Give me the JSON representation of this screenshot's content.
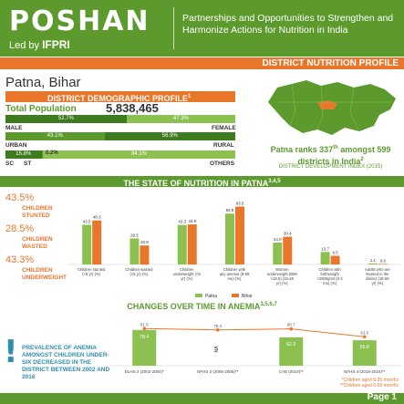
{
  "header": {
    "logo": "POSHAN",
    "led_by": "Led by",
    "ifpri": "IFPRI",
    "tagline": "Partnerships and Opportunities to Strengthen and Harmonize Actions for Nutrition in India",
    "band_title": "DISTRICT NUTRITION PROFILE"
  },
  "district": {
    "name": "Patna, Bihar",
    "demo_title": "DISTRICT DEMOGRAPHIC PROFILE",
    "demo_sup": "1",
    "total_label": "Total Population",
    "total_value": "5,838,465",
    "male_pct": 52.7,
    "male_label_pct": "52.7%",
    "female_pct": 47.3,
    "female_label_pct": "47.3%",
    "male": "MALE",
    "female": "FEMALE",
    "urban_pct": 43.1,
    "urban_label_pct": "43.1%",
    "rural_pct": 56.9,
    "rural_label_pct": "56.9%",
    "urban": "URBAN",
    "rural": "RURAL",
    "sc_pct": 15.8,
    "sc_label_pct": "15.8%",
    "st_pct": 0.2,
    "st_label_pct": "0.2%",
    "others_pct": 84.1,
    "others_label_pct": "84.1%",
    "sc": "SC",
    "st": "ST",
    "others": "OTHERS"
  },
  "rank": {
    "text1": "Patna ranks 337",
    "sup1": "th",
    "text2": " amongst 599 districts in India",
    "sup2": "2",
    "ddi": "DISTRICT DEVELOPMENT INDEX (2015)"
  },
  "state_title": "THE STATE OF NUTRITION IN PATNA",
  "state_sup": "3,4,5",
  "stats": [
    {
      "pct": "43.5%",
      "label": "CHILDREN STUNTED"
    },
    {
      "pct": "28.5%",
      "label": "CHILDREN WASTED"
    },
    {
      "pct": "43.3%",
      "label": "CHILDREN UNDERWEIGHT"
    }
  ],
  "colors": {
    "green": "#5c9a2e",
    "orange": "#e8762b",
    "blue": "#2d8fb0",
    "patna_bar": "#8cc152",
    "bihar_bar": "#e8762b"
  },
  "chart_data": [
    {
      "type": "bar",
      "categories": [
        "Children stunted (<5 yr) (%)",
        "Children wasted (<5 yr) (%)",
        "Children underweight (<5 yr) (%)",
        "Children with any anemia (6-59 mo) (%)",
        "Women underweight (BMI <18.5) (15-49 yr) (%)",
        "Children with birthweight <2500gms (0-2 mo) (%)",
        "Adults who are stunted in the district (18-59 yr) (%)"
      ],
      "series": [
        {
          "name": "Patna",
          "values": [
            43.5,
            28.5,
            43.3,
            55.8,
            24.0,
            13.7,
            1.1
          ]
        },
        {
          "name": "Bihar",
          "values": [
            48.3,
            20.8,
            43.9,
            63.5,
            30.4,
            9.5,
            0.6
          ]
        }
      ],
      "ylim": [
        0,
        70
      ],
      "legend": "bottom"
    },
    {
      "type": "bar",
      "title": "CHANGES OVER TIME IN ANEMIA",
      "title_sup": "3,5,6,7",
      "categories": [
        "DLHS 2 (2002-2004)*",
        "NFHS 3 (2005-2006)**",
        "CAB (2014)**",
        "NFHS 4 (2015-2016)**"
      ],
      "bars": [
        78.4,
        null,
        62.3,
        55.8
      ],
      "bar_labels": [
        "78.4",
        "NA",
        "62.3",
        "55.8"
      ],
      "line": [
        81.5,
        78.4,
        80.7,
        63.5
      ],
      "line_labels": [
        "81.5",
        "78.4",
        "80.7",
        "63.5"
      ],
      "ylim": [
        0,
        100
      ]
    }
  ],
  "anemia_note": "PREVALENCE OF ANEMIA AMONGST CHILDREN UNDER-SIX DECREASED IN THE DISTRICT BETWEEN 2002 AND 2016",
  "notes": [
    "*Children aged 6-35 months",
    "**Children aged 6-59 months"
  ],
  "footer": {
    "page": "Page 1"
  }
}
